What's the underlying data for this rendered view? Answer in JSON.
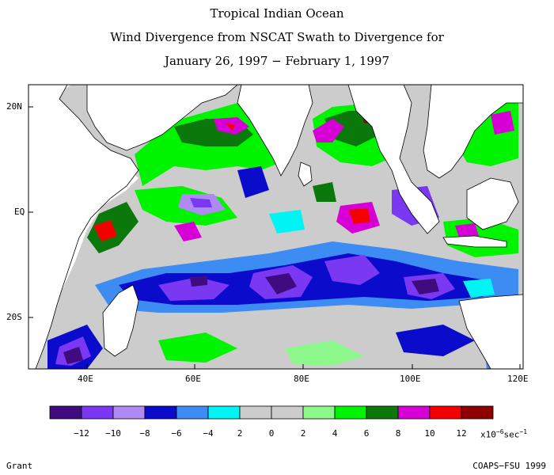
{
  "title": {
    "line1": "Tropical Indian Ocean",
    "line2": "Wind Divergence from NSCAT Swath to Divergence for",
    "line3": "January 26, 1997 − February 1, 1997"
  },
  "axes": {
    "lat_labels": [
      "20N",
      "EQ",
      "20S"
    ],
    "lon_labels": [
      "40E",
      "60E",
      "80E",
      "100E",
      "120E"
    ]
  },
  "colorbar": {
    "colors": [
      "#3f0b7f",
      "#7a38f2",
      "#b08af4",
      "#0b0bcc",
      "#3c8cf4",
      "#00f4f4",
      "#cccccc",
      "#cccccc",
      "#8cf88c",
      "#00f400",
      "#0b780b",
      "#d600d6",
      "#f40000",
      "#8e0000"
    ],
    "tick_labels": [
      "−12",
      "−10",
      "−8",
      "−6",
      "−4",
      "2",
      "0",
      "2",
      "4",
      "6",
      "8",
      "10",
      "12"
    ],
    "units_text": "x10",
    "units_exp": "−6",
    "units_suffix": "sec",
    "units_suffix_exp": "−1"
  },
  "footer": {
    "left": "Grant",
    "right": "COAPS−FSU 1999"
  }
}
